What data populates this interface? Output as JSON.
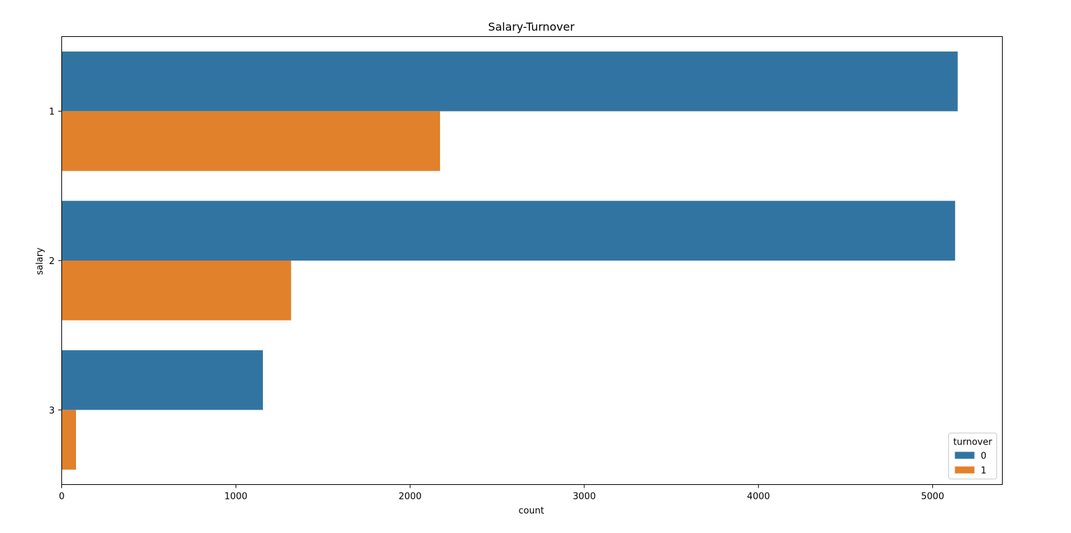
{
  "chart_data": {
    "type": "bar",
    "orientation": "horizontal",
    "title": "Salary-Turnover",
    "xlabel": "count",
    "ylabel": "salary",
    "categories": [
      "1",
      "2",
      "3"
    ],
    "series": [
      {
        "name": "0",
        "color": "#3274a1",
        "values": [
          5144,
          5129,
          1155
        ]
      },
      {
        "name": "1",
        "color": "#e1812c",
        "values": [
          2172,
          1317,
          82
        ]
      }
    ],
    "xlim": [
      0,
      5400
    ],
    "xticks": [
      0,
      1000,
      2000,
      3000,
      4000,
      5000
    ],
    "grid": false,
    "legend": {
      "title": "turnover",
      "placement": "bottom-right"
    }
  }
}
